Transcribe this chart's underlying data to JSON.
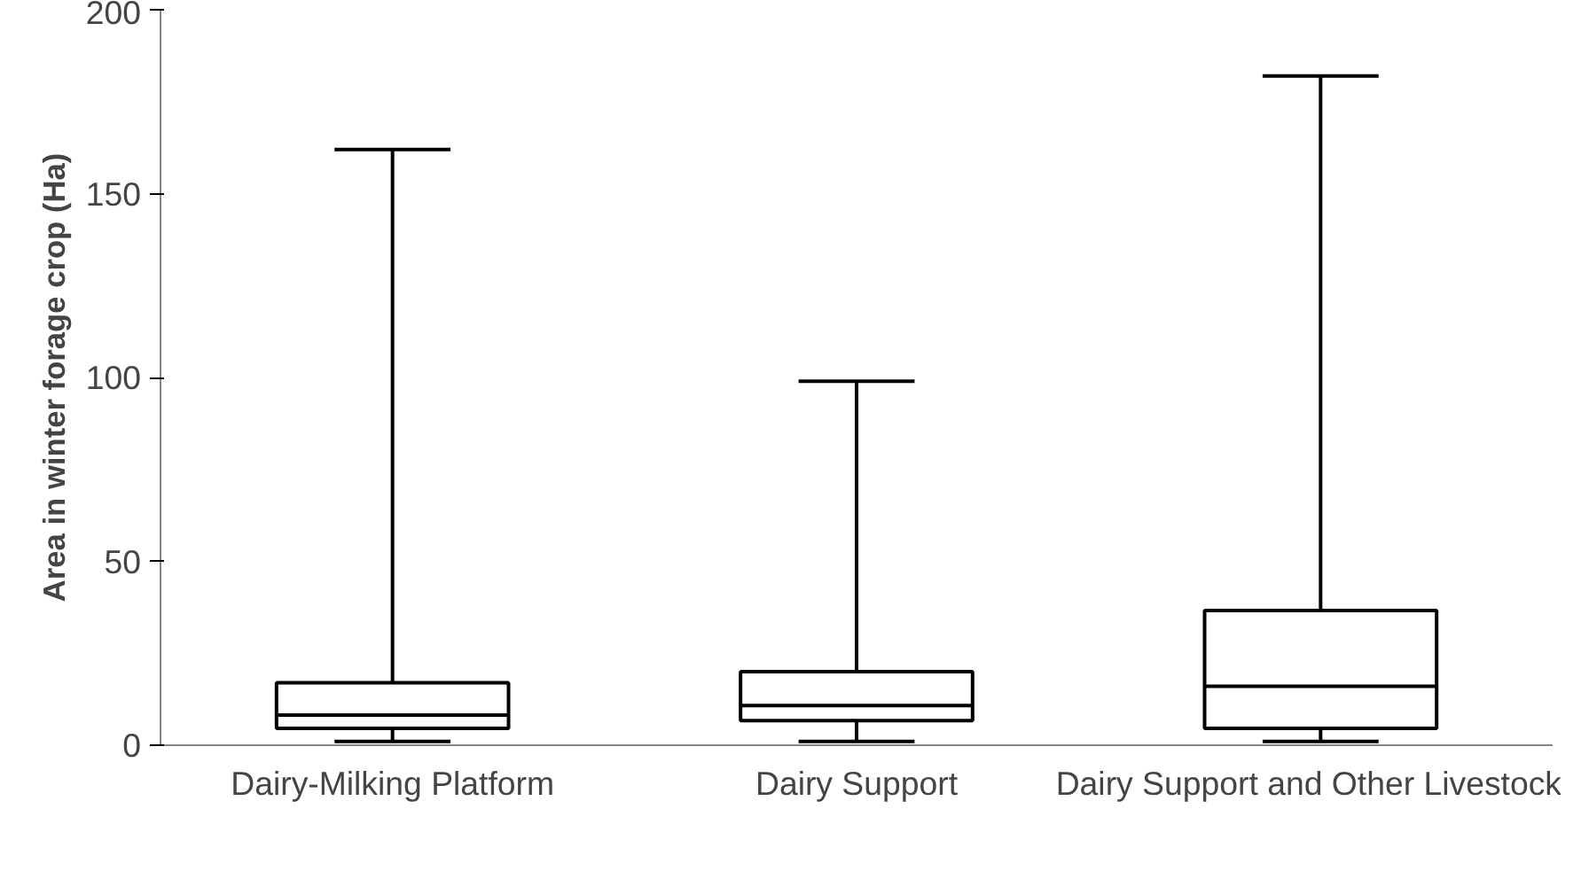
{
  "chart_data": {
    "type": "box",
    "ylabel": "Area in winter forage crop (Ha)",
    "categories": [
      "Dairy-Milking Platform",
      "Dairy Support",
      "Dairy Support and Other Livestock"
    ],
    "boxes": [
      {
        "low": 1,
        "q1": 4.6,
        "median": 8.2,
        "q3": 17,
        "high": 162
      },
      {
        "low": 1,
        "q1": 6.7,
        "median": 10.8,
        "q3": 20,
        "high": 99
      },
      {
        "low": 1,
        "q1": 4.6,
        "median": 16,
        "q3": 36.6,
        "high": 182
      }
    ],
    "color": "#000000",
    "ylim": [
      0,
      200
    ],
    "yticks": [
      0,
      50,
      100,
      150,
      200
    ],
    "grid": false
  }
}
